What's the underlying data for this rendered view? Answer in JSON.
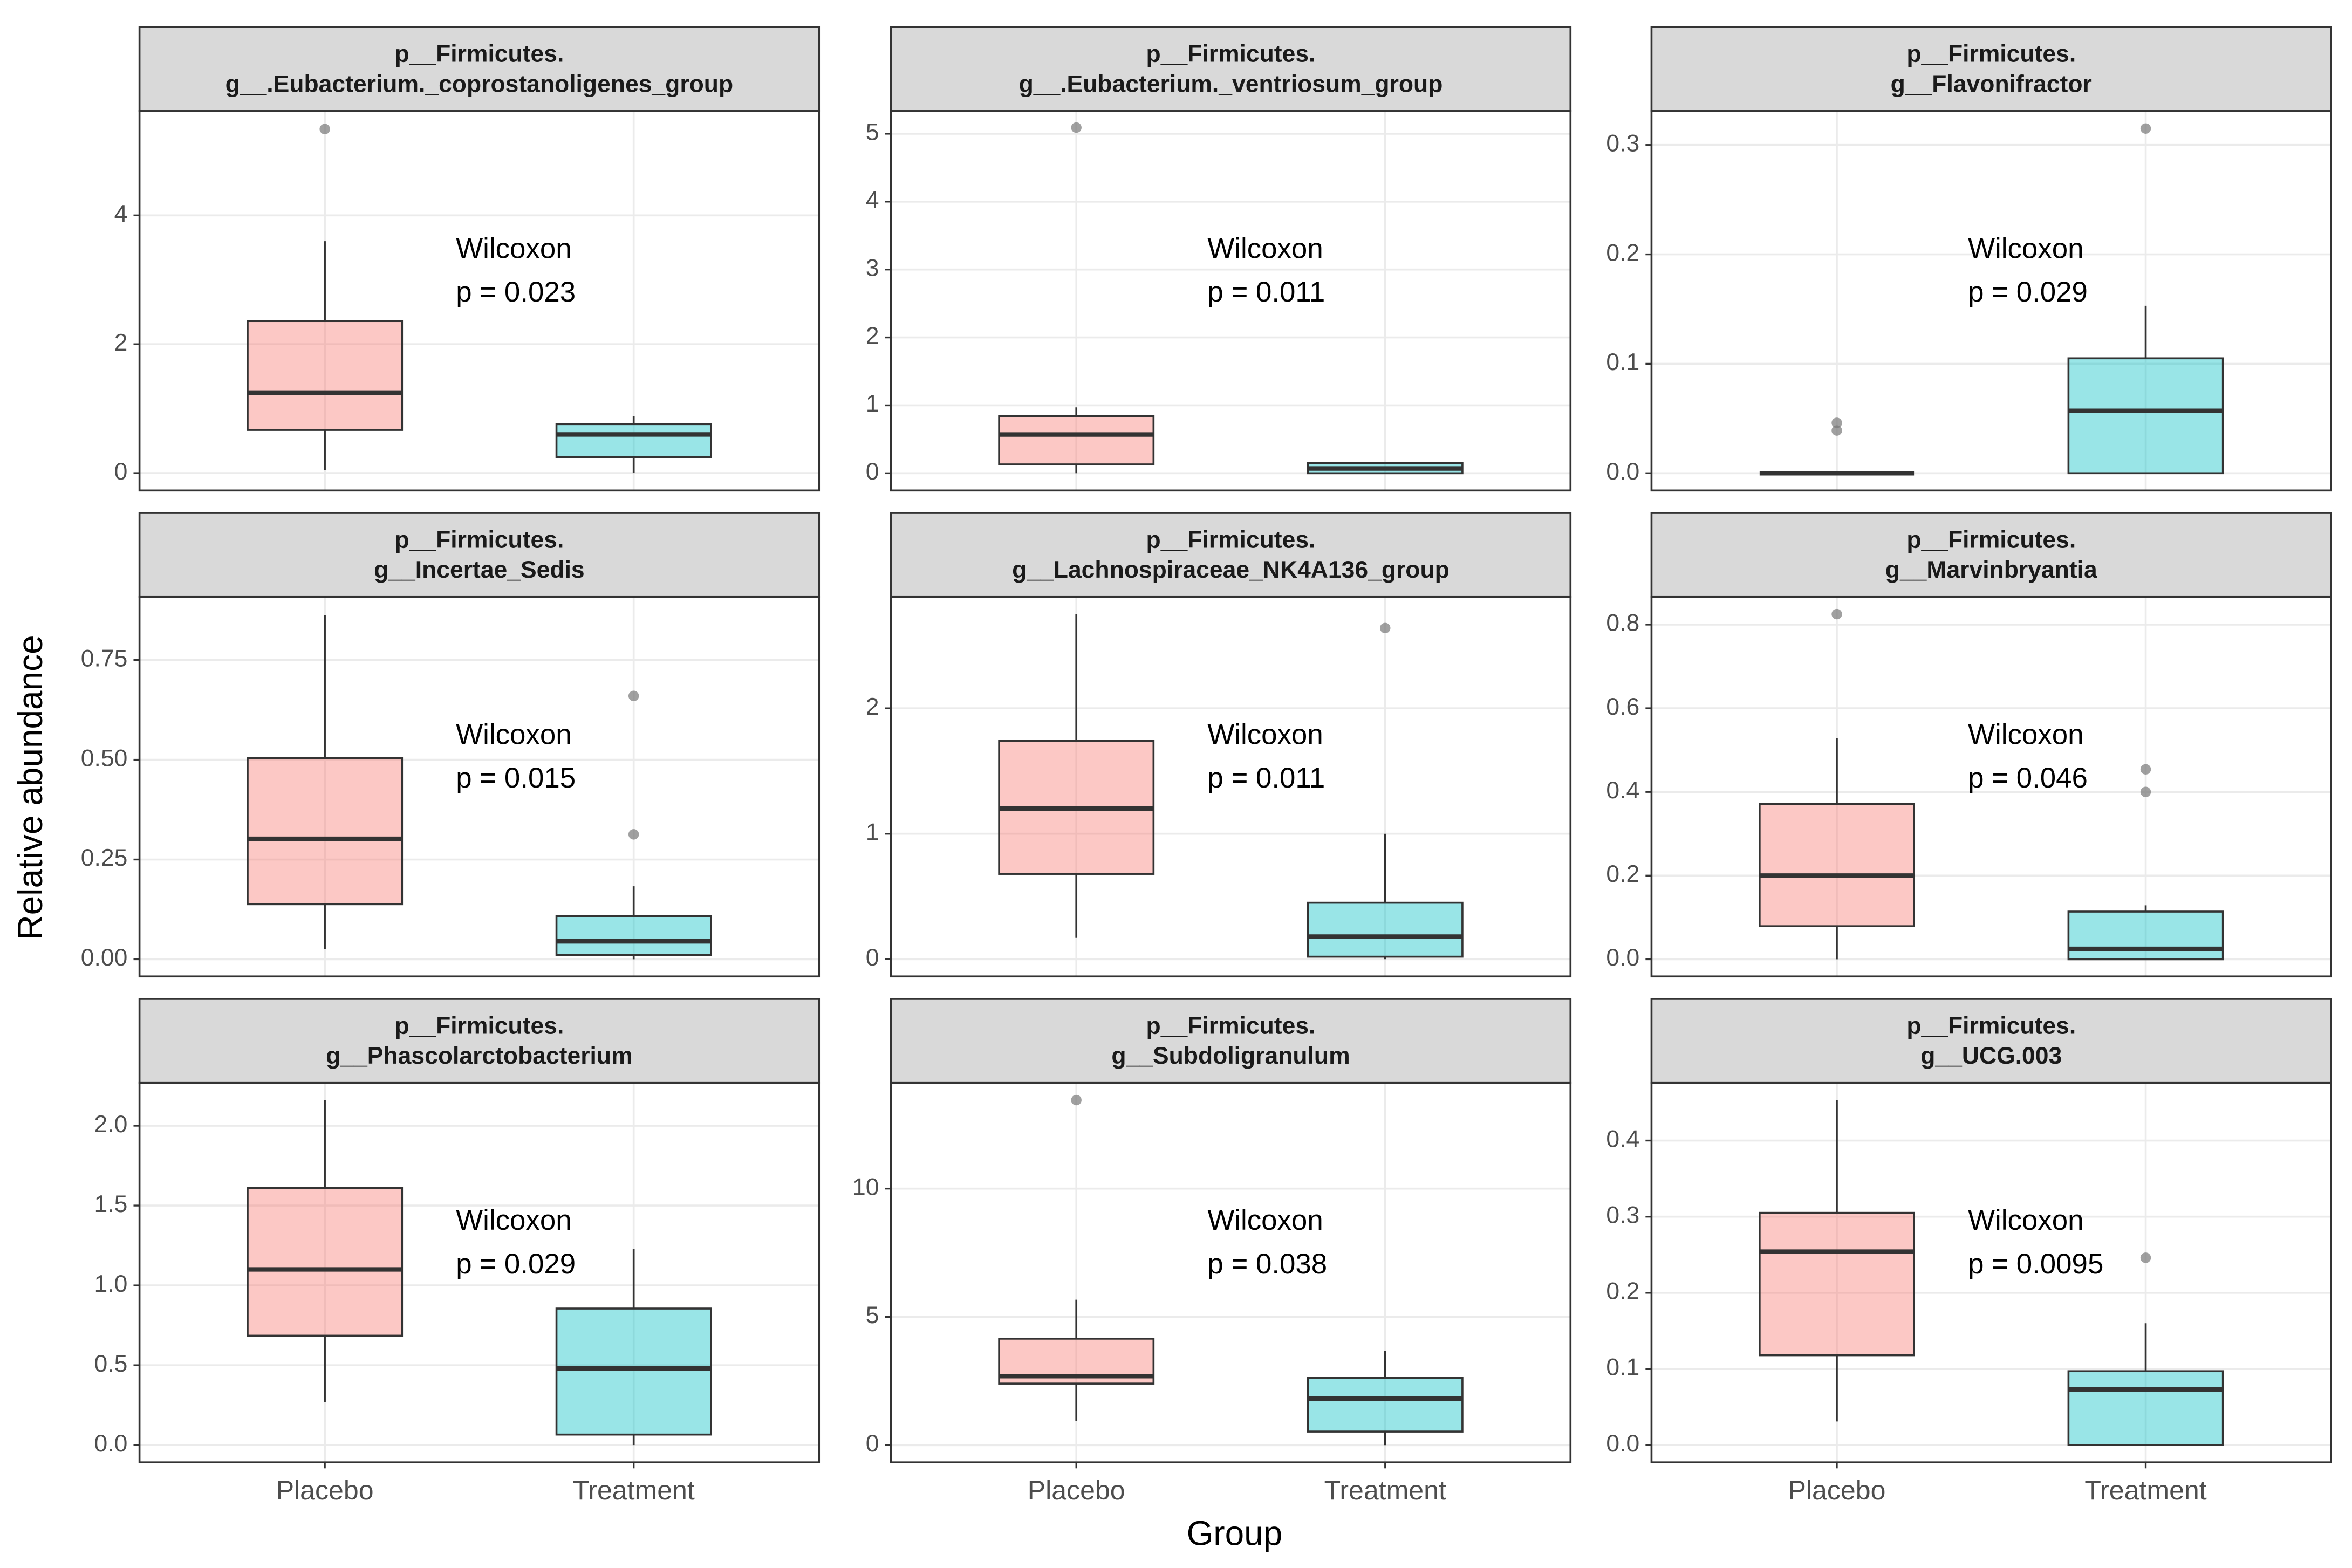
{
  "y_label": "Relative abundance",
  "x_label": "Group",
  "chart_data": [
    {
      "type": "box",
      "strip": [
        "p__Firmicutes.",
        "g__.Eubacterium._coprostanoligenes_group"
      ],
      "categories": [
        "Placebo",
        "Treatment"
      ],
      "boxes": [
        {
          "color": "#f8766d",
          "min": 0.05,
          "q1": 0.67,
          "median": 1.25,
          "q3": 2.36,
          "max": 3.6,
          "outliers": [
            5.34
          ]
        },
        {
          "color": "#00bfc4",
          "min": 0.0,
          "q1": 0.25,
          "median": 0.6,
          "q3": 0.76,
          "max": 0.88,
          "outliers": []
        }
      ],
      "annotation": [
        "Wilcoxon",
        "p = 0.023"
      ],
      "ylim": [
        -0.27,
        5.62
      ],
      "yticks": [
        0,
        2,
        4
      ],
      "grid": true
    },
    {
      "type": "box",
      "strip": [
        "p__Firmicutes.",
        "g__.Eubacterium._ventriosum_group"
      ],
      "categories": [
        "Placebo",
        "Treatment"
      ],
      "boxes": [
        {
          "color": "#f8766d",
          "min": 0.0,
          "q1": 0.13,
          "median": 0.57,
          "q3": 0.84,
          "max": 0.97,
          "outliers": [
            5.09
          ]
        },
        {
          "color": "#00bfc4",
          "min": 0.0,
          "q1": 0.0,
          "median": 0.07,
          "q3": 0.15,
          "max": 0.15,
          "outliers": []
        }
      ],
      "annotation": [
        "Wilcoxon",
        "p = 0.011"
      ],
      "ylim": [
        -0.254,
        5.334
      ],
      "yticks": [
        0,
        1,
        2,
        3,
        4,
        5
      ],
      "grid": true
    },
    {
      "type": "box",
      "strip": [
        "p__Firmicutes.",
        "g__Flavonifractor"
      ],
      "categories": [
        "Placebo",
        "Treatment"
      ],
      "boxes": [
        {
          "color": "#f8766d",
          "min": 0.0,
          "q1": 0.0,
          "median": 0.0,
          "q3": 0.0,
          "max": 0.0,
          "outliers": [
            0.046,
            0.039
          ]
        },
        {
          "color": "#00bfc4",
          "min": 0.0,
          "q1": 0.0,
          "median": 0.057,
          "q3": 0.105,
          "max": 0.153,
          "outliers": [
            0.315
          ]
        }
      ],
      "annotation": [
        "Wilcoxon",
        "p = 0.029"
      ],
      "ylim": [
        -0.0158,
        0.331
      ],
      "yticks": [
        {
          "value": 0,
          "label": "0.0"
        },
        0.1,
        0.2,
        0.3
      ],
      "grid": true
    },
    {
      "type": "box",
      "strip": [
        "p__Firmicutes.",
        "g__Incertae_Sedis"
      ],
      "categories": [
        "Placebo",
        "Treatment"
      ],
      "boxes": [
        {
          "color": "#f8766d",
          "min": 0.026,
          "q1": 0.138,
          "median": 0.302,
          "q3": 0.504,
          "max": 0.862,
          "outliers": []
        },
        {
          "color": "#00bfc4",
          "min": 0.0,
          "q1": 0.011,
          "median": 0.045,
          "q3": 0.108,
          "max": 0.183,
          "outliers": [
            0.313,
            0.66
          ]
        }
      ],
      "annotation": [
        "Wilcoxon",
        "p = 0.015"
      ],
      "ylim": [
        -0.043,
        0.908
      ],
      "yticks": [
        {
          "value": 0,
          "label": "0.00"
        },
        0.25,
        {
          "value": 0.5,
          "label": "0.50"
        },
        0.75
      ],
      "grid": true
    },
    {
      "type": "box",
      "strip": [
        "p__Firmicutes.",
        "g__Lachnospiraceae_NK4A136_group"
      ],
      "categories": [
        "Placebo",
        "Treatment"
      ],
      "boxes": [
        {
          "color": "#f8766d",
          "min": 0.17,
          "q1": 0.68,
          "median": 1.2,
          "q3": 1.74,
          "max": 2.75,
          "outliers": []
        },
        {
          "color": "#00bfc4",
          "min": 0.0,
          "q1": 0.02,
          "median": 0.18,
          "q3": 0.45,
          "max": 1.0,
          "outliers": [
            2.64
          ]
        }
      ],
      "annotation": [
        "Wilcoxon",
        "p = 0.011"
      ],
      "ylim": [
        -0.1375,
        2.8875
      ],
      "yticks": [
        0,
        1,
        2
      ],
      "grid": true
    },
    {
      "type": "box",
      "strip": [
        "p__Firmicutes.",
        "g__Marvinbryantia"
      ],
      "categories": [
        "Placebo",
        "Treatment"
      ],
      "boxes": [
        {
          "color": "#f8766d",
          "min": 0.0,
          "q1": 0.079,
          "median": 0.2,
          "q3": 0.371,
          "max": 0.529,
          "outliers": [
            0.825
          ]
        },
        {
          "color": "#00bfc4",
          "min": 0.0,
          "q1": 0.0,
          "median": 0.025,
          "q3": 0.114,
          "max": 0.129,
          "outliers": [
            0.454,
            0.4
          ]
        }
      ],
      "annotation": [
        "Wilcoxon",
        "p = 0.046"
      ],
      "ylim": [
        -0.041,
        0.866
      ],
      "yticks": [
        {
          "value": 0,
          "label": "0.0"
        },
        0.2,
        0.4,
        0.6,
        0.8
      ],
      "grid": true
    },
    {
      "type": "box",
      "strip": [
        "p__Firmicutes.",
        "g__Phascolarctobacterium"
      ],
      "categories": [
        "Placebo",
        "Treatment"
      ],
      "boxes": [
        {
          "color": "#f8766d",
          "min": 0.27,
          "q1": 0.685,
          "median": 1.1,
          "q3": 1.61,
          "max": 2.16,
          "outliers": []
        },
        {
          "color": "#00bfc4",
          "min": 0.0,
          "q1": 0.066,
          "median": 0.48,
          "q3": 0.855,
          "max": 1.23,
          "outliers": []
        }
      ],
      "annotation": [
        "Wilcoxon",
        "p = 0.029"
      ],
      "ylim": [
        -0.108,
        2.268
      ],
      "yticks": [
        {
          "value": 0,
          "label": "0.0"
        },
        0.5,
        {
          "value": 1,
          "label": "1.0"
        },
        1.5,
        {
          "value": 2,
          "label": "2.0"
        }
      ],
      "grid": true
    },
    {
      "type": "box",
      "strip": [
        "p__Firmicutes.",
        "g__Subdoligranulum"
      ],
      "categories": [
        "Placebo",
        "Treatment"
      ],
      "boxes": [
        {
          "color": "#f8766d",
          "min": 0.94,
          "q1": 2.4,
          "median": 2.69,
          "q3": 4.15,
          "max": 5.67,
          "outliers": [
            13.45
          ]
        },
        {
          "color": "#00bfc4",
          "min": 0.0,
          "q1": 0.53,
          "median": 1.81,
          "q3": 2.63,
          "max": 3.68,
          "outliers": []
        }
      ],
      "annotation": [
        "Wilcoxon",
        "p = 0.038"
      ],
      "ylim": [
        -0.67,
        14.12
      ],
      "yticks": [
        0,
        5,
        10
      ],
      "grid": true
    },
    {
      "type": "box",
      "strip": [
        "p__Firmicutes.",
        "g__UCG.003"
      ],
      "categories": [
        "Placebo",
        "Treatment"
      ],
      "boxes": [
        {
          "color": "#f8766d",
          "min": 0.031,
          "q1": 0.118,
          "median": 0.254,
          "q3": 0.305,
          "max": 0.453,
          "outliers": []
        },
        {
          "color": "#00bfc4",
          "min": 0.0,
          "q1": 0.0,
          "median": 0.073,
          "q3": 0.097,
          "max": 0.16,
          "outliers": [
            0.246
          ]
        }
      ],
      "annotation": [
        "Wilcoxon",
        "p = 0.0095"
      ],
      "ylim": [
        -0.0227,
        0.4757
      ],
      "yticks": [
        {
          "value": 0,
          "label": "0.0"
        },
        0.1,
        0.2,
        0.3,
        0.4
      ],
      "grid": true
    }
  ]
}
